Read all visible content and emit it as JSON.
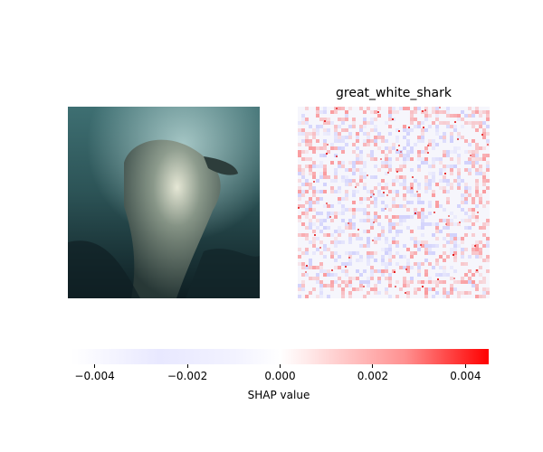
{
  "chart_data": {
    "type": "heatmap",
    "panels": [
      {
        "name": "input-image",
        "title": ""
      },
      {
        "name": "shap-map",
        "title": "great_white_shark"
      }
    ],
    "colorbar": {
      "label": "SHAP value",
      "range": [
        -0.0045,
        0.0045
      ],
      "ticks": [
        -0.004,
        -0.002,
        0.0,
        0.002,
        0.004
      ],
      "tick_labels": [
        "−0.004",
        "−0.002",
        "0.000",
        "0.002",
        "0.004"
      ],
      "colormap": [
        "#0000ff",
        "#ffffff",
        "#ff0000"
      ]
    }
  }
}
